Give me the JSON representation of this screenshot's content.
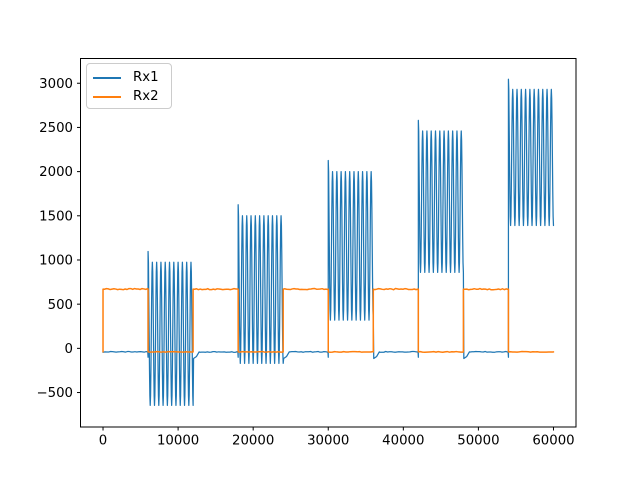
{
  "chart_data": {
    "type": "line",
    "title": "",
    "xlabel": "",
    "ylabel": "",
    "grid": false,
    "xlim": [
      -3000,
      63000
    ],
    "ylim": [
      -890,
      3280
    ],
    "x_ticks": {
      "values": [
        0,
        10000,
        20000,
        30000,
        40000,
        50000,
        60000
      ],
      "labels": [
        "0",
        "10000",
        "20000",
        "30000",
        "40000",
        "50000",
        "60000"
      ]
    },
    "y_ticks": {
      "values": [
        -500,
        0,
        500,
        1000,
        1500,
        2000,
        2500,
        3000
      ],
      "labels": [
        "−500",
        "0",
        "500",
        "1000",
        "1500",
        "2000",
        "2500",
        "3000"
      ]
    },
    "legend": {
      "position": "upper left",
      "entries": [
        {
          "label": "Rx1",
          "color": "#1f77b4"
        },
        {
          "label": "Rx2",
          "color": "#ff7f0e"
        }
      ]
    },
    "series": [
      {
        "name": "Rx1",
        "color": "#1f77b4",
        "shape": "burst-train",
        "x_range": [
          0,
          60000
        ],
        "baseline": -40,
        "baseline_noise": 5,
        "cycles_per_burst": 10.5,
        "first_peak_overshoot": 1.15,
        "bursts": [
          {
            "x_start": 6000,
            "x_end": 12000,
            "center": 165,
            "amplitude": 810,
            "y_min": -645,
            "y_max": 975
          },
          {
            "x_start": 18000,
            "x_end": 24000,
            "center": 665,
            "amplitude": 835,
            "y_min": -170,
            "y_max": 1500
          },
          {
            "x_start": 30000,
            "x_end": 36000,
            "center": 1160,
            "amplitude": 840,
            "y_min": 320,
            "y_max": 2000
          },
          {
            "x_start": 42000,
            "x_end": 48000,
            "center": 1660,
            "amplitude": 800,
            "y_min": 860,
            "y_max": 2460
          },
          {
            "x_start": 54000,
            "x_end": 60000,
            "center": 2160,
            "amplitude": 770,
            "y_min": 1390,
            "y_max": 2930
          }
        ]
      },
      {
        "name": "Rx2",
        "color": "#ff7f0e",
        "shape": "square-wave",
        "x_range": [
          0,
          60000
        ],
        "high": 670,
        "low": -40,
        "period": 12000,
        "high_duration": 6000,
        "first_state": "high",
        "high_noise": 7,
        "low_noise": 4
      }
    ]
  },
  "figure": {
    "background": "#ffffff",
    "spine_color": "#000000",
    "tick_color": "#000000",
    "label_color": "#000000"
  }
}
